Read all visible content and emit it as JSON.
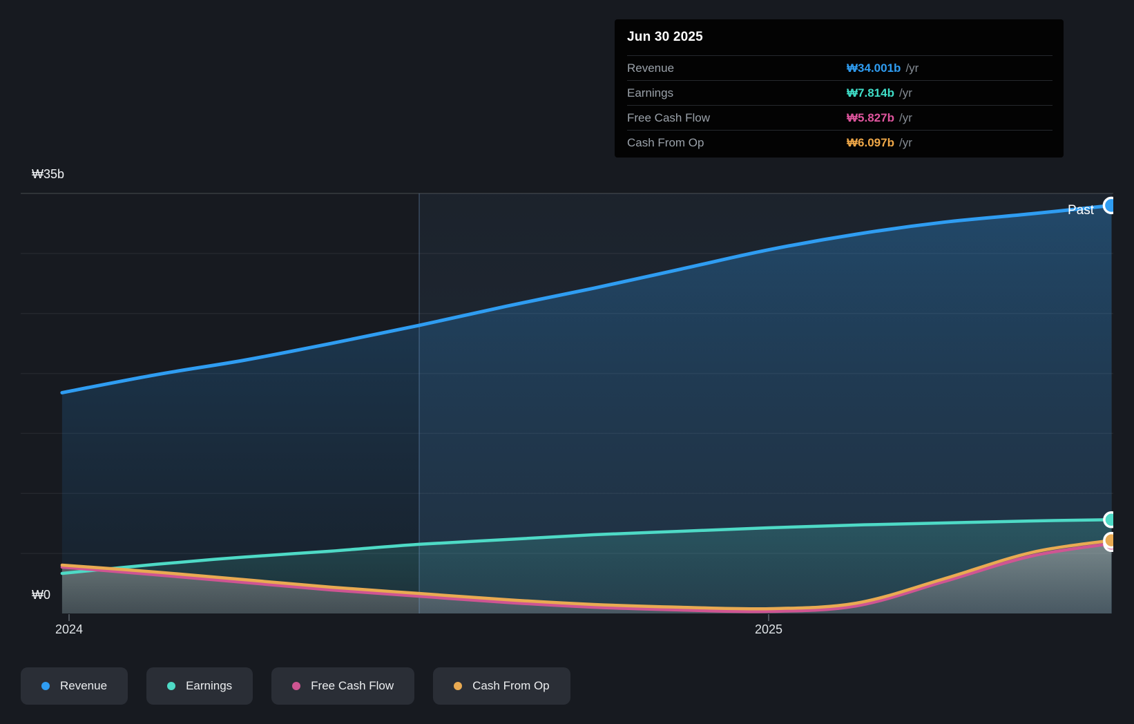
{
  "tooltip": {
    "date": "Jun 30 2025",
    "rows": [
      {
        "label": "Revenue",
        "value": "₩34.001b",
        "suffix": "/yr",
        "color": "#2f9df2"
      },
      {
        "label": "Earnings",
        "value": "₩7.814b",
        "suffix": "/yr",
        "color": "#3fdec8"
      },
      {
        "label": "Free Cash Flow",
        "value": "₩5.827b",
        "suffix": "/yr",
        "color": "#e0559e"
      },
      {
        "label": "Cash From Op",
        "value": "₩6.097b",
        "suffix": "/yr",
        "color": "#f0a848"
      }
    ]
  },
  "axis": {
    "y_top_label": "₩35b",
    "y_bottom_label": "₩0",
    "x_tick_labels": [
      "2024",
      "2025"
    ]
  },
  "annotations": {
    "past_label": "Past"
  },
  "legend": [
    {
      "label": "Revenue",
      "color": "#2f9df2"
    },
    {
      "label": "Earnings",
      "color": "#4edac6"
    },
    {
      "label": "Free Cash Flow",
      "color": "#cf5592"
    },
    {
      "label": "Cash From Op",
      "color": "#e9aa52"
    }
  ],
  "chart_data": {
    "type": "area",
    "title": "",
    "xlabel": "",
    "ylabel": "KRW billions",
    "ylim": [
      0,
      35
    ],
    "grid": "horizontal, every 5b, very faint",
    "legend_position": "bottom-left pills",
    "x": [
      2023.99,
      2024.125,
      2024.25,
      2024.375,
      2024.5,
      2024.625,
      2024.75,
      2024.875,
      2025.0,
      2025.125,
      2025.25,
      2025.375,
      2025.49
    ],
    "highlight_region_x": [
      2024.5,
      2025.49
    ],
    "series": [
      {
        "name": "Revenue",
        "color": "#2f9df2",
        "end_label": "₩34.001b/yr",
        "values": [
          18.4,
          19.9,
          21.1,
          22.5,
          24.0,
          25.6,
          27.1,
          28.7,
          30.3,
          31.6,
          32.6,
          33.3,
          34.001
        ]
      },
      {
        "name": "Earnings",
        "color": "#4edac6",
        "end_label": "₩7.814b/yr",
        "values": [
          3.34,
          4.1,
          4.7,
          5.2,
          5.76,
          6.16,
          6.56,
          6.85,
          7.14,
          7.37,
          7.54,
          7.71,
          7.814
        ]
      },
      {
        "name": "Cash From Op",
        "color": "#e9aa52",
        "end_label": "₩6.097b/yr",
        "values": [
          4.03,
          3.45,
          2.82,
          2.19,
          1.67,
          1.15,
          0.75,
          0.52,
          0.4,
          0.86,
          2.88,
          5.07,
          6.097
        ]
      },
      {
        "name": "Free Cash Flow",
        "color": "#cf5592",
        "end_label": "₩5.827b/yr",
        "values": [
          3.86,
          3.22,
          2.59,
          1.96,
          1.44,
          0.92,
          0.52,
          0.29,
          0.17,
          0.63,
          2.65,
          4.78,
          5.827
        ]
      }
    ]
  }
}
